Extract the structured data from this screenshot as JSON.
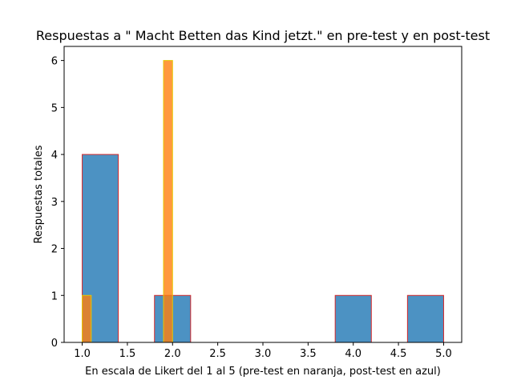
{
  "chart_data": {
    "type": "bar",
    "title": "Respuestas a \" Macht Betten das Kind jetzt.\" en pre-test y en post-test",
    "xlabel": "En escala de Likert del 1 al 5 (pre-test en naranja, post-test en azul)",
    "ylabel": "Respuestas totales",
    "xlim": [
      0.8,
      5.2
    ],
    "ylim": [
      0,
      6.3
    ],
    "xticks": [
      "1.0",
      "1.5",
      "2.0",
      "2.5",
      "3.0",
      "3.5",
      "4.0",
      "4.5",
      "5.0"
    ],
    "yticks": [
      "0",
      "1",
      "2",
      "3",
      "4",
      "5",
      "6"
    ],
    "grid": false,
    "series": [
      {
        "color": "#1f77b4",
        "edgecolor": "#d62728",
        "opacity": 0.8,
        "bars": [
          {
            "x0": 1.0,
            "x1": 1.4,
            "value": 4
          },
          {
            "x0": 1.4,
            "x1": 1.8,
            "value": 0
          },
          {
            "x0": 1.8,
            "x1": 2.2,
            "value": 1
          },
          {
            "x0": 2.2,
            "x1": 2.6,
            "value": 0
          },
          {
            "x0": 2.6,
            "x1": 3.0,
            "value": 0
          },
          {
            "x0": 3.0,
            "x1": 3.4,
            "value": 0
          },
          {
            "x0": 3.4,
            "x1": 3.8,
            "value": 0
          },
          {
            "x0": 3.8,
            "x1": 4.2,
            "value": 1
          },
          {
            "x0": 4.2,
            "x1": 4.6,
            "value": 0
          },
          {
            "x0": 4.6,
            "x1": 5.0,
            "value": 1
          }
        ]
      },
      {
        "color": "#ff7f0e",
        "edgecolor": "#e6c700",
        "opacity": 0.8,
        "bars": [
          {
            "x0": 1.0,
            "x1": 1.1,
            "value": 1
          },
          {
            "x0": 1.1,
            "x1": 1.2,
            "value": 0
          },
          {
            "x0": 1.2,
            "x1": 1.3,
            "value": 0
          },
          {
            "x0": 1.3,
            "x1": 1.4,
            "value": 0
          },
          {
            "x0": 1.4,
            "x1": 1.5,
            "value": 0
          },
          {
            "x0": 1.5,
            "x1": 1.6,
            "value": 0
          },
          {
            "x0": 1.6,
            "x1": 1.7,
            "value": 0
          },
          {
            "x0": 1.7,
            "x1": 1.8,
            "value": 0
          },
          {
            "x0": 1.8,
            "x1": 1.9,
            "value": 0
          },
          {
            "x0": 1.9,
            "x1": 2.0,
            "value": 6
          }
        ]
      }
    ]
  }
}
